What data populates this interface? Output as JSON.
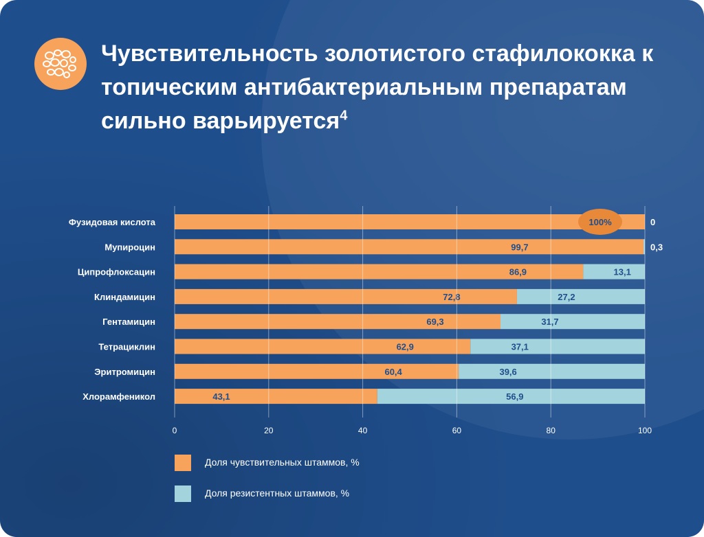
{
  "header": {
    "title": "Чувствительность золотистого стафилококка к топическим антибактериальным препаратам сильно варьируется",
    "title_superscript": "4",
    "badge_icon": "bacteria-cluster-icon"
  },
  "colors": {
    "background": "#1f4e8c",
    "sensitive": "#f7a35c",
    "resistant": "#a3d3dc",
    "highlight": "#e8893a",
    "label_text": "#1f4e8c"
  },
  "legend": {
    "sensitive_label": "Доля чувствительных штаммов, %",
    "resistant_label": "Доля резистентных штаммов, %"
  },
  "chart_data": {
    "type": "bar",
    "orientation": "horizontal",
    "stacked": true,
    "categories": [
      "Фузидовая кислота",
      "Мупироцин",
      "Ципрофлоксацин",
      "Клиндамицин",
      "Гентамицин",
      "Тетрациклин",
      "Эритромицин",
      "Хлорамфеникол"
    ],
    "series": [
      {
        "name": "Доля чувствительных штаммов, %",
        "values": [
          100,
          99.7,
          86.9,
          72.8,
          69.3,
          62.9,
          60.4,
          43.1
        ],
        "labels": [
          "100%",
          "99,7",
          "86,9",
          "72,8",
          "69,3",
          "62,9",
          "60,4",
          "43,1"
        ]
      },
      {
        "name": "Доля резистентных штаммов, %",
        "values": [
          0,
          0.3,
          13.1,
          27.2,
          31.7,
          37.1,
          39.6,
          56.9
        ],
        "labels": [
          "0",
          "0,3",
          "13,1",
          "27,2",
          "31,7",
          "37,1",
          "39,6",
          "56,9"
        ]
      }
    ],
    "xlim": [
      0,
      100
    ],
    "xticks": [
      "0",
      "20",
      "40",
      "60",
      "80",
      "100"
    ],
    "grid": true,
    "legend_position": "bottom"
  }
}
